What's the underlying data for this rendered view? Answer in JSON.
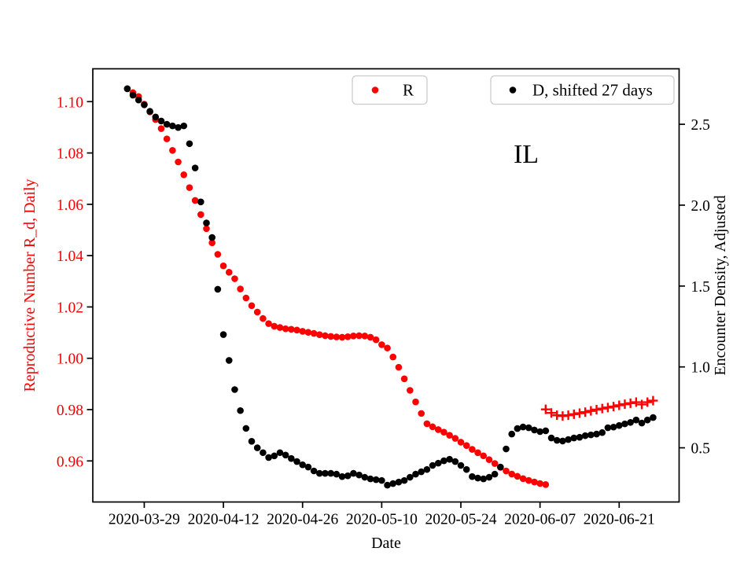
{
  "figure": {
    "background": "#ffffff",
    "state_annotation": "IL"
  },
  "axes": {
    "x": {
      "label": "Date",
      "tick_labels": [
        "2020-03-29",
        "2020-04-12",
        "2020-04-26",
        "2020-05-10",
        "2020-05-24",
        "2020-06-07",
        "2020-06-21"
      ]
    },
    "y_left": {
      "label": "Reproductive Number R_d, Daily",
      "color": "#ff0000",
      "tick_labels": [
        "1.10",
        "1.08",
        "1.06",
        "1.04",
        "1.02",
        "1.00",
        "0.98",
        "0.96"
      ],
      "tick_values": [
        1.1,
        1.08,
        1.06,
        1.04,
        1.02,
        1.0,
        0.98,
        0.96
      ]
    },
    "y_right": {
      "label": "Encounter Density, Adjusted",
      "color": "#000000",
      "tick_labels": [
        "2.5",
        "2.0",
        "1.5",
        "1.0",
        "0.5"
      ],
      "tick_values": [
        2.5,
        2.0,
        1.5,
        1.0,
        0.5
      ]
    }
  },
  "legend": [
    {
      "label": "R",
      "marker": "dot",
      "color": "#ff0000"
    },
    {
      "label": "D, shifted 27 days",
      "marker": "dot",
      "color": "#000000"
    }
  ],
  "chart_data": {
    "type": "scatter",
    "title": "IL",
    "xlabel": "Date",
    "ylabel_left": "Reproductive Number R_d, Daily",
    "ylabel_right": "Encounter Density, Adjusted",
    "x_ref": "2020-03-29",
    "xlim_days": [
      -9.1,
      94.6
    ],
    "ylim_left": [
      0.944,
      1.1128
    ],
    "ylim_right": [
      0.165,
      2.843
    ],
    "x_tick_dates": [
      "2020-03-29",
      "2020-04-12",
      "2020-04-26",
      "2020-05-10",
      "2020-05-24",
      "2020-06-07",
      "2020-06-21"
    ],
    "grid": false,
    "legend_position": "upper center, two boxes",
    "series": [
      {
        "name": "R",
        "axis": "left",
        "marker": "circle",
        "color": "#ff0000",
        "points": [
          [
            "2020-03-26",
            1.105
          ],
          [
            "2020-03-27",
            1.1035
          ],
          [
            "2020-03-28",
            1.102
          ],
          [
            "2020-03-29",
            1.099
          ],
          [
            "2020-03-30",
            1.096
          ],
          [
            "2020-03-31",
            1.093
          ],
          [
            "2020-04-01",
            1.0895
          ],
          [
            "2020-04-02",
            1.0855
          ],
          [
            "2020-04-03",
            1.081
          ],
          [
            "2020-04-04",
            1.0765
          ],
          [
            "2020-04-05",
            1.0715
          ],
          [
            "2020-04-06",
            1.0665
          ],
          [
            "2020-04-07",
            1.0615
          ],
          [
            "2020-04-08",
            1.056
          ],
          [
            "2020-04-09",
            1.0505
          ],
          [
            "2020-04-10",
            1.045
          ],
          [
            "2020-04-11",
            1.0405
          ],
          [
            "2020-04-12",
            1.036
          ],
          [
            "2020-04-13",
            1.0335
          ],
          [
            "2020-04-14",
            1.031
          ],
          [
            "2020-04-15",
            1.027
          ],
          [
            "2020-04-16",
            1.0235
          ],
          [
            "2020-04-17",
            1.0205
          ],
          [
            "2020-04-18",
            1.018
          ],
          [
            "2020-04-19",
            1.0155
          ],
          [
            "2020-04-20",
            1.0135
          ],
          [
            "2020-04-21",
            1.0125
          ],
          [
            "2020-04-22",
            1.012
          ],
          [
            "2020-04-23",
            1.0115
          ],
          [
            "2020-04-24",
            1.0113
          ],
          [
            "2020-04-25",
            1.011
          ],
          [
            "2020-04-26",
            1.0105
          ],
          [
            "2020-04-27",
            1.0101
          ],
          [
            "2020-04-28",
            1.0097
          ],
          [
            "2020-04-29",
            1.0092
          ],
          [
            "2020-04-30",
            1.0088
          ],
          [
            "2020-05-01",
            1.0085
          ],
          [
            "2020-05-02",
            1.0083
          ],
          [
            "2020-05-03",
            1.0082
          ],
          [
            "2020-05-04",
            1.0084
          ],
          [
            "2020-05-05",
            1.0087
          ],
          [
            "2020-05-06",
            1.0088
          ],
          [
            "2020-05-07",
            1.0087
          ],
          [
            "2020-05-08",
            1.0082
          ],
          [
            "2020-05-09",
            1.0072
          ],
          [
            "2020-05-10",
            1.0053
          ],
          [
            "2020-05-11",
            1.004
          ],
          [
            "2020-05-12",
            1.0005
          ],
          [
            "2020-05-13",
            0.9965
          ],
          [
            "2020-05-14",
            0.992
          ],
          [
            "2020-05-15",
            0.9875
          ],
          [
            "2020-05-16",
            0.983
          ],
          [
            "2020-05-17",
            0.9785
          ],
          [
            "2020-05-18",
            0.9745
          ],
          [
            "2020-05-19",
            0.9733
          ],
          [
            "2020-05-20",
            0.9722
          ],
          [
            "2020-05-21",
            0.9712
          ],
          [
            "2020-05-22",
            0.97
          ],
          [
            "2020-05-23",
            0.9688
          ],
          [
            "2020-05-24",
            0.9673
          ],
          [
            "2020-05-25",
            0.966
          ],
          [
            "2020-05-26",
            0.9645
          ],
          [
            "2020-05-27",
            0.9632
          ],
          [
            "2020-05-28",
            0.962
          ],
          [
            "2020-05-29",
            0.9605
          ],
          [
            "2020-05-30",
            0.959
          ],
          [
            "2020-05-31",
            0.9575
          ],
          [
            "2020-06-01",
            0.9561
          ],
          [
            "2020-06-02",
            0.9549
          ],
          [
            "2020-06-03",
            0.954
          ],
          [
            "2020-06-04",
            0.9531
          ],
          [
            "2020-06-05",
            0.9524
          ],
          [
            "2020-06-06",
            0.9518
          ],
          [
            "2020-06-07",
            0.9512
          ],
          [
            "2020-06-08",
            0.9508
          ]
        ]
      },
      {
        "name": "R (plus markers)",
        "axis": "left",
        "marker": "plus",
        "color": "#ff0000",
        "points": [
          [
            "2020-06-08",
            0.9801
          ],
          [
            "2020-06-09",
            0.9787
          ],
          [
            "2020-06-10",
            0.9778
          ],
          [
            "2020-06-11",
            0.9775
          ],
          [
            "2020-06-12",
            0.9778
          ],
          [
            "2020-06-13",
            0.9782
          ],
          [
            "2020-06-14",
            0.9786
          ],
          [
            "2020-06-15",
            0.979
          ],
          [
            "2020-06-16",
            0.9795
          ],
          [
            "2020-06-17",
            0.98
          ],
          [
            "2020-06-18",
            0.9804
          ],
          [
            "2020-06-19",
            0.9808
          ],
          [
            "2020-06-20",
            0.9812
          ],
          [
            "2020-06-21",
            0.9817
          ],
          [
            "2020-06-22",
            0.9821
          ],
          [
            "2020-06-23",
            0.9825
          ],
          [
            "2020-06-24",
            0.9829
          ],
          [
            "2020-06-25",
            0.982
          ],
          [
            "2020-06-26",
            0.9829
          ],
          [
            "2020-06-27",
            0.9835
          ]
        ]
      },
      {
        "name": "D, shifted 27 days",
        "axis": "right",
        "marker": "circle",
        "color": "#000000",
        "points": [
          [
            "2020-03-26",
            2.72
          ],
          [
            "2020-03-27",
            2.68
          ],
          [
            "2020-03-28",
            2.65
          ],
          [
            "2020-03-29",
            2.62
          ],
          [
            "2020-03-30",
            2.58
          ],
          [
            "2020-03-31",
            2.545
          ],
          [
            "2020-04-01",
            2.52
          ],
          [
            "2020-04-02",
            2.5
          ],
          [
            "2020-04-03",
            2.49
          ],
          [
            "2020-04-04",
            2.48
          ],
          [
            "2020-04-05",
            2.49
          ],
          [
            "2020-04-06",
            2.38
          ],
          [
            "2020-04-07",
            2.23
          ],
          [
            "2020-04-08",
            2.02
          ],
          [
            "2020-04-09",
            1.89
          ],
          [
            "2020-04-10",
            1.8
          ],
          [
            "2020-04-11",
            1.48
          ],
          [
            "2020-04-12",
            1.2
          ],
          [
            "2020-04-13",
            1.04
          ],
          [
            "2020-04-14",
            0.86
          ],
          [
            "2020-04-15",
            0.73
          ],
          [
            "2020-04-16",
            0.62
          ],
          [
            "2020-04-17",
            0.54
          ],
          [
            "2020-04-18",
            0.5
          ],
          [
            "2020-04-19",
            0.47
          ],
          [
            "2020-04-20",
            0.44
          ],
          [
            "2020-04-21",
            0.45
          ],
          [
            "2020-04-22",
            0.47
          ],
          [
            "2020-04-23",
            0.455
          ],
          [
            "2020-04-24",
            0.434
          ],
          [
            "2020-04-25",
            0.415
          ],
          [
            "2020-04-26",
            0.395
          ],
          [
            "2020-04-27",
            0.381
          ],
          [
            "2020-04-28",
            0.357
          ],
          [
            "2020-04-29",
            0.342
          ],
          [
            "2020-04-30",
            0.342
          ],
          [
            "2020-05-01",
            0.342
          ],
          [
            "2020-05-02",
            0.337
          ],
          [
            "2020-05-03",
            0.322
          ],
          [
            "2020-05-04",
            0.327
          ],
          [
            "2020-05-05",
            0.342
          ],
          [
            "2020-05-06",
            0.332
          ],
          [
            "2020-05-07",
            0.318
          ],
          [
            "2020-05-08",
            0.308
          ],
          [
            "2020-05-09",
            0.303
          ],
          [
            "2020-05-10",
            0.298
          ],
          [
            "2020-05-11",
            0.269
          ],
          [
            "2020-05-12",
            0.279
          ],
          [
            "2020-05-13",
            0.288
          ],
          [
            "2020-05-14",
            0.298
          ],
          [
            "2020-05-15",
            0.318
          ],
          [
            "2020-05-16",
            0.337
          ],
          [
            "2020-05-17",
            0.352
          ],
          [
            "2020-05-18",
            0.366
          ],
          [
            "2020-05-19",
            0.391
          ],
          [
            "2020-05-20",
            0.405
          ],
          [
            "2020-05-21",
            0.42
          ],
          [
            "2020-05-22",
            0.429
          ],
          [
            "2020-05-23",
            0.415
          ],
          [
            "2020-05-24",
            0.391
          ],
          [
            "2020-05-25",
            0.366
          ],
          [
            "2020-05-26",
            0.322
          ],
          [
            "2020-05-27",
            0.313
          ],
          [
            "2020-05-28",
            0.308
          ],
          [
            "2020-05-29",
            0.318
          ],
          [
            "2020-05-30",
            0.337
          ],
          [
            "2020-05-31",
            0.381
          ],
          [
            "2020-06-01",
            0.493
          ],
          [
            "2020-06-02",
            0.585
          ],
          [
            "2020-06-03",
            0.619
          ],
          [
            "2020-06-04",
            0.629
          ],
          [
            "2020-06-05",
            0.624
          ],
          [
            "2020-06-06",
            0.61
          ],
          [
            "2020-06-07",
            0.6
          ],
          [
            "2020-06-08",
            0.605
          ],
          [
            "2020-06-09",
            0.561
          ],
          [
            "2020-06-10",
            0.546
          ],
          [
            "2020-06-11",
            0.542
          ],
          [
            "2020-06-12",
            0.551
          ],
          [
            "2020-06-13",
            0.561
          ],
          [
            "2020-06-14",
            0.565
          ],
          [
            "2020-06-15",
            0.575
          ],
          [
            "2020-06-16",
            0.58
          ],
          [
            "2020-06-17",
            0.585
          ],
          [
            "2020-06-18",
            0.594
          ],
          [
            "2020-06-19",
            0.624
          ],
          [
            "2020-06-20",
            0.628
          ],
          [
            "2020-06-21",
            0.638
          ],
          [
            "2020-06-22",
            0.648
          ],
          [
            "2020-06-23",
            0.657
          ],
          [
            "2020-06-24",
            0.672
          ],
          [
            "2020-06-25",
            0.653
          ],
          [
            "2020-06-26",
            0.672
          ],
          [
            "2020-06-27",
            0.687
          ]
        ]
      }
    ]
  }
}
